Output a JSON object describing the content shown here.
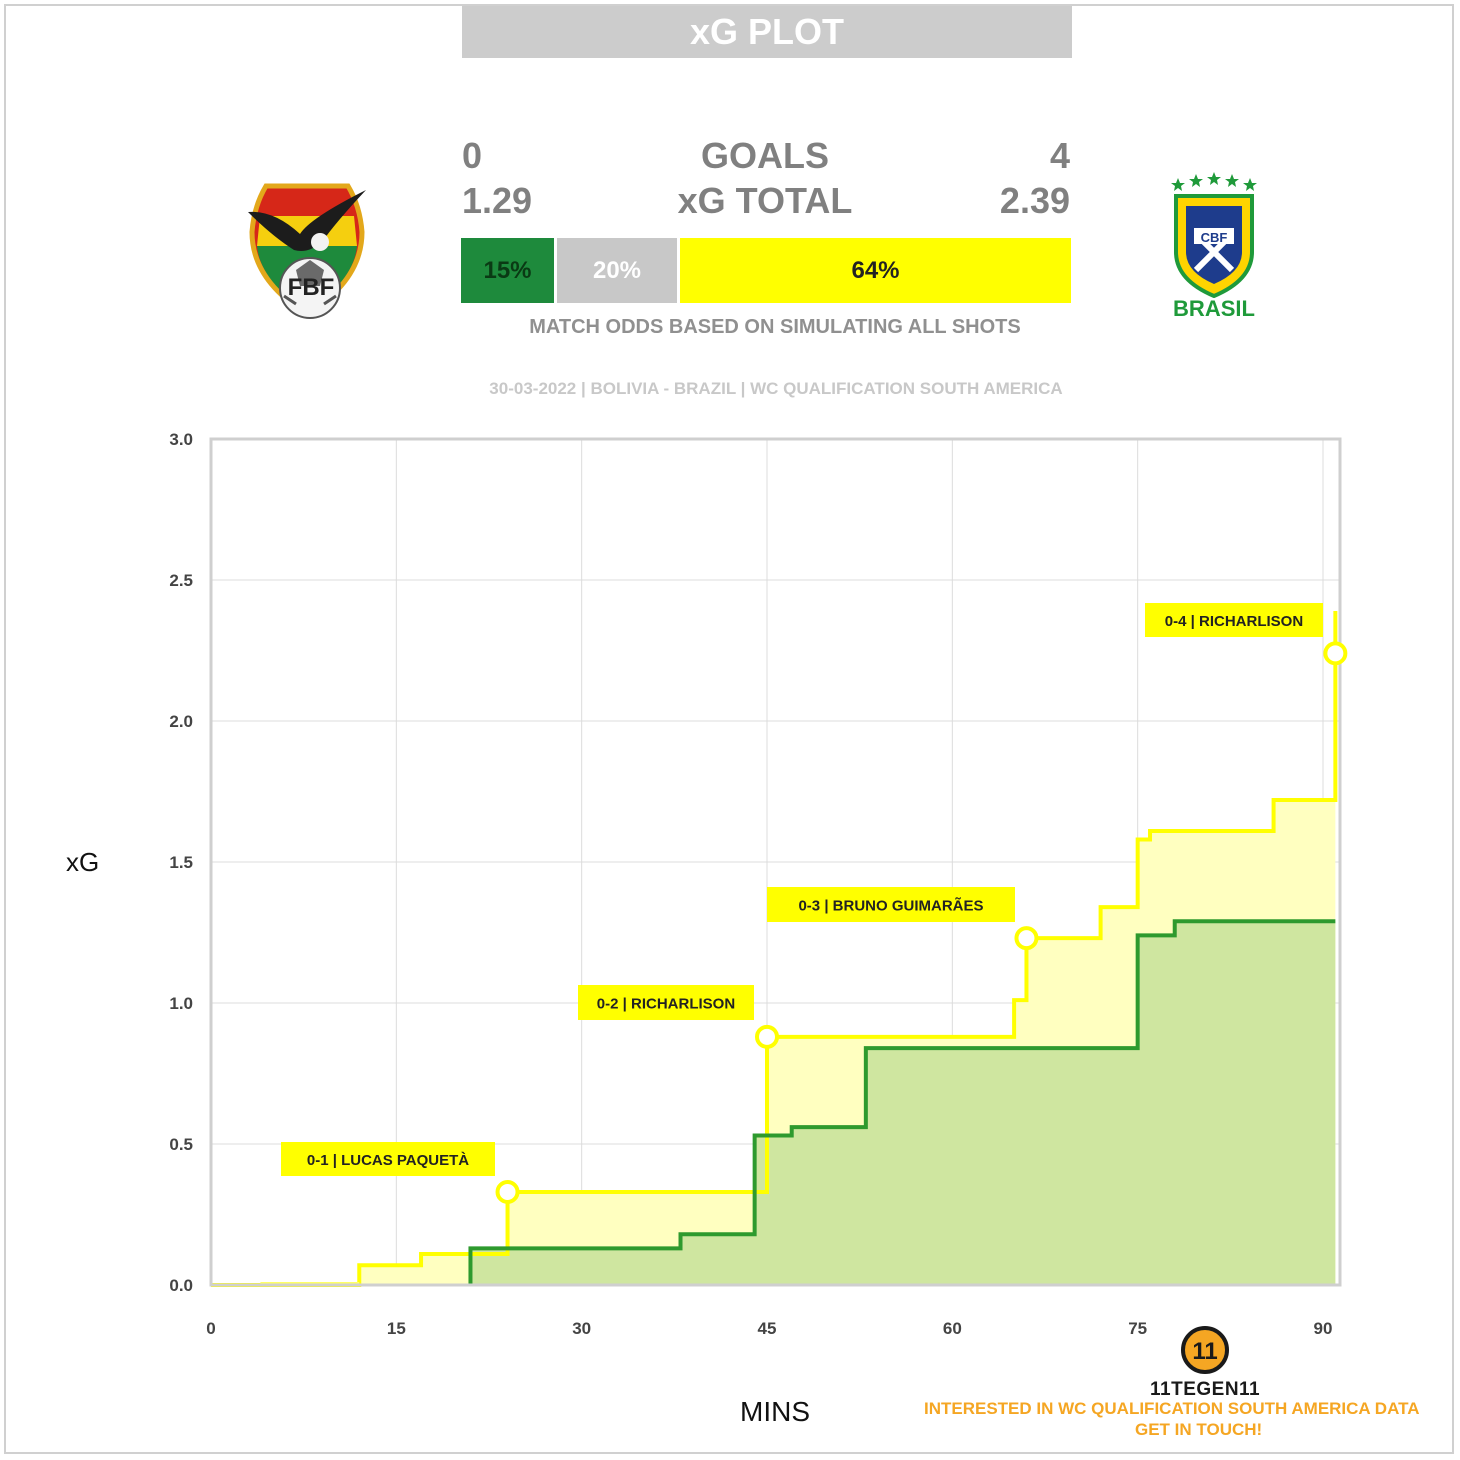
{
  "header": {
    "title": "xG PLOT"
  },
  "scoreboard": {
    "home_goals": "0",
    "away_goals": "4",
    "goals_label": "GOALS",
    "home_xg": "1.29",
    "away_xg": "2.39",
    "xg_label": "xG TOTAL"
  },
  "odds": {
    "home_win": "15%",
    "draw": "20%",
    "away_win": "64%",
    "caption": "MATCH ODDS BASED ON SIMULATING ALL SHOTS",
    "colors": {
      "home": "#1e8a3c",
      "draw": "#c8c8c8",
      "away": "#ffff00"
    }
  },
  "match_info": "30-03-2022 | BOLIVIA - BRAZIL | WC QUALIFICATION SOUTH AMERICA",
  "logos": {
    "home_icon": "bolivia-fbf-crest-icon",
    "home_text": "FBF",
    "away_icon": "brazil-cbf-crest-icon",
    "away_text": "CBF",
    "away_name": "BRASIL"
  },
  "branding": {
    "logo_icon": "11tegen11-logo-icon",
    "logo_text": "11",
    "name": "11TEGEN11",
    "promo_line1": "INTERESTED IN  WC QUALIFICATION SOUTH AMERICA  DATA",
    "promo_line2": "GET IN TOUCH!"
  },
  "chart_data": {
    "type": "area",
    "xlabel": "MINS",
    "ylabel": "xG",
    "xlim": [
      0,
      92
    ],
    "ylim": [
      0,
      3.0
    ],
    "xticks": [
      0,
      15,
      30,
      45,
      60,
      75,
      90
    ],
    "yticks": [
      0.0,
      0.5,
      1.0,
      1.5,
      2.0,
      2.5,
      3.0
    ],
    "grid": true,
    "series": [
      {
        "color": "#2e9a2e",
        "fill": "#cfe6a0",
        "points": [
          [
            0,
            0
          ],
          [
            21,
            0
          ],
          [
            21,
            0.13
          ],
          [
            38,
            0.13
          ],
          [
            38,
            0.18
          ],
          [
            44,
            0.18
          ],
          [
            44,
            0.53
          ],
          [
            47,
            0.53
          ],
          [
            47,
            0.56
          ],
          [
            53,
            0.56
          ],
          [
            53,
            0.84
          ],
          [
            75,
            0.84
          ],
          [
            75,
            1.24
          ],
          [
            78,
            1.24
          ],
          [
            78,
            1.29
          ],
          [
            91,
            1.29
          ]
        ]
      },
      {
        "color": "#ffff00",
        "fill": "#ffffc0",
        "points": [
          [
            0,
            0
          ],
          [
            12,
            0
          ],
          [
            12,
            0.07
          ],
          [
            17,
            0.07
          ],
          [
            17,
            0.11
          ],
          [
            24,
            0.11
          ],
          [
            24,
            0.33
          ],
          [
            45,
            0.33
          ],
          [
            45,
            0.88
          ],
          [
            65,
            0.88
          ],
          [
            65,
            1.01
          ],
          [
            66,
            1.01
          ],
          [
            66,
            1.23
          ],
          [
            72,
            1.23
          ],
          [
            72,
            1.34
          ],
          [
            75,
            1.34
          ],
          [
            75,
            1.58
          ],
          [
            76,
            1.58
          ],
          [
            76,
            1.61
          ],
          [
            86,
            1.61
          ],
          [
            86,
            1.72
          ],
          [
            91,
            1.72
          ],
          [
            91,
            2.39
          ]
        ]
      }
    ],
    "goals": [
      {
        "minute": 24,
        "xg": 0.33,
        "label": "0-1 | LUCAS PAQUETÀ"
      },
      {
        "minute": 45,
        "xg": 0.88,
        "label": "0-2 | RICHARLISON"
      },
      {
        "minute": 66,
        "xg": 1.23,
        "label": "0-3 | BRUNO GUIMARÃES"
      },
      {
        "minute": 91,
        "xg": 2.24,
        "label": "0-4 | RICHARLISON"
      }
    ]
  }
}
